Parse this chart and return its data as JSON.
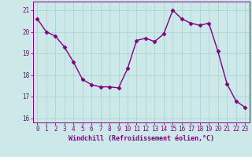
{
  "x": [
    0,
    1,
    2,
    3,
    4,
    5,
    6,
    7,
    8,
    9,
    10,
    11,
    12,
    13,
    14,
    15,
    16,
    17,
    18,
    19,
    20,
    21,
    22,
    23
  ],
  "y": [
    20.6,
    20.0,
    19.8,
    19.3,
    18.6,
    17.8,
    17.55,
    17.45,
    17.45,
    17.4,
    18.3,
    19.6,
    19.7,
    19.55,
    19.9,
    21.0,
    20.6,
    20.4,
    20.3,
    20.4,
    19.1,
    17.6,
    16.8,
    16.5
  ],
  "line_color": "#800080",
  "marker": "D",
  "marker_size": 2.5,
  "linewidth": 1.0,
  "bg_color": "#cce8e8",
  "grid_color": "#b0d8d8",
  "xlabel": "Windchill (Refroidissement éolien,°C)",
  "xlabel_color": "#800080",
  "tick_color": "#800080",
  "label_fontsize": 5.5,
  "xlabel_fontsize": 6.0,
  "ylim": [
    15.8,
    21.4
  ],
  "yticks": [
    16,
    17,
    18,
    19,
    20,
    21
  ],
  "xticks": [
    0,
    1,
    2,
    3,
    4,
    5,
    6,
    7,
    8,
    9,
    10,
    11,
    12,
    13,
    14,
    15,
    16,
    17,
    18,
    19,
    20,
    21,
    22,
    23
  ]
}
